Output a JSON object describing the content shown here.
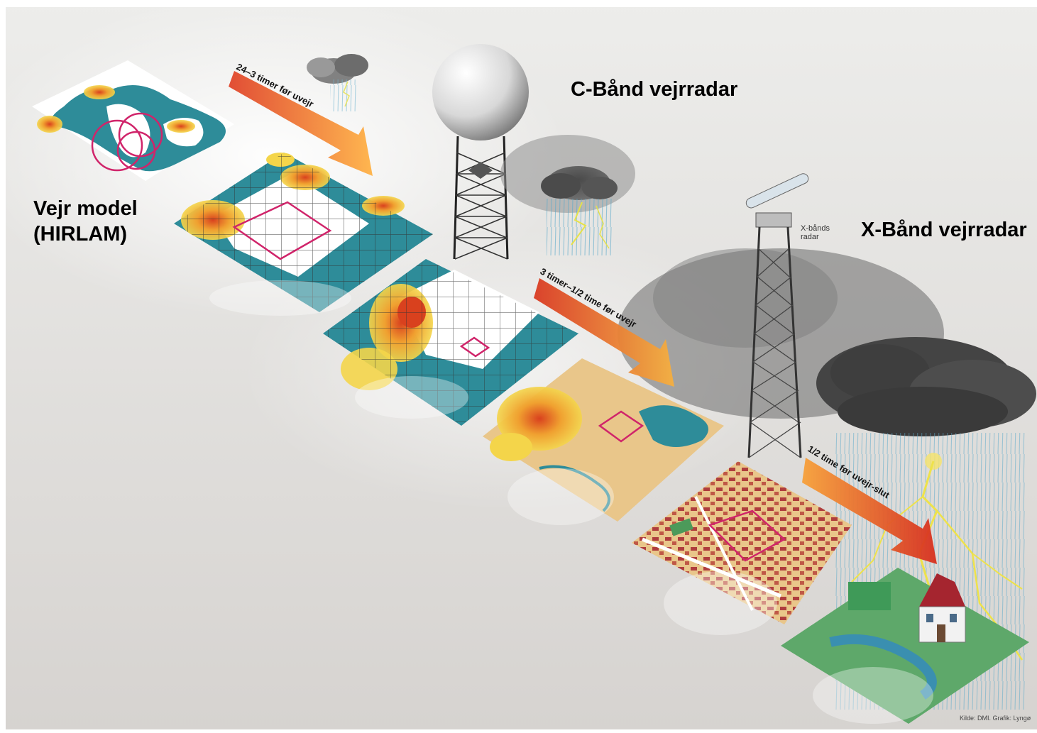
{
  "labels": {
    "weather_model_line1": "Vejr model",
    "weather_model_line2": "(HIRLAM)",
    "c_band_radar": "C-Bånd vejrradar",
    "x_band_radar": "X-Bånd vejrradar",
    "x_bands_radar_small": "X-bånds radar",
    "source_credit": "Kilde: DMI. Grafik: Lyngø"
  },
  "arrows": [
    {
      "text": "24–3 timer før uvejr",
      "color_start": "#ffb347",
      "color_end": "#e0452b"
    },
    {
      "text": "3 timer–1/2 time før uvejr",
      "color_start": "#f5b040",
      "color_end": "#d93a22"
    },
    {
      "text": "1/2 time før uvejr-slut",
      "color_start": "#f7a13a",
      "color_end": "#d7301f"
    }
  ],
  "colors": {
    "sea": "#2e8c99",
    "land": "#ffffff",
    "precip_low": "#f4d54a",
    "precip_high": "#d9411e",
    "box": "#d0246a",
    "urban": "#e9c68a",
    "building": "#a5252f",
    "cloud": "#5a5a5a"
  }
}
